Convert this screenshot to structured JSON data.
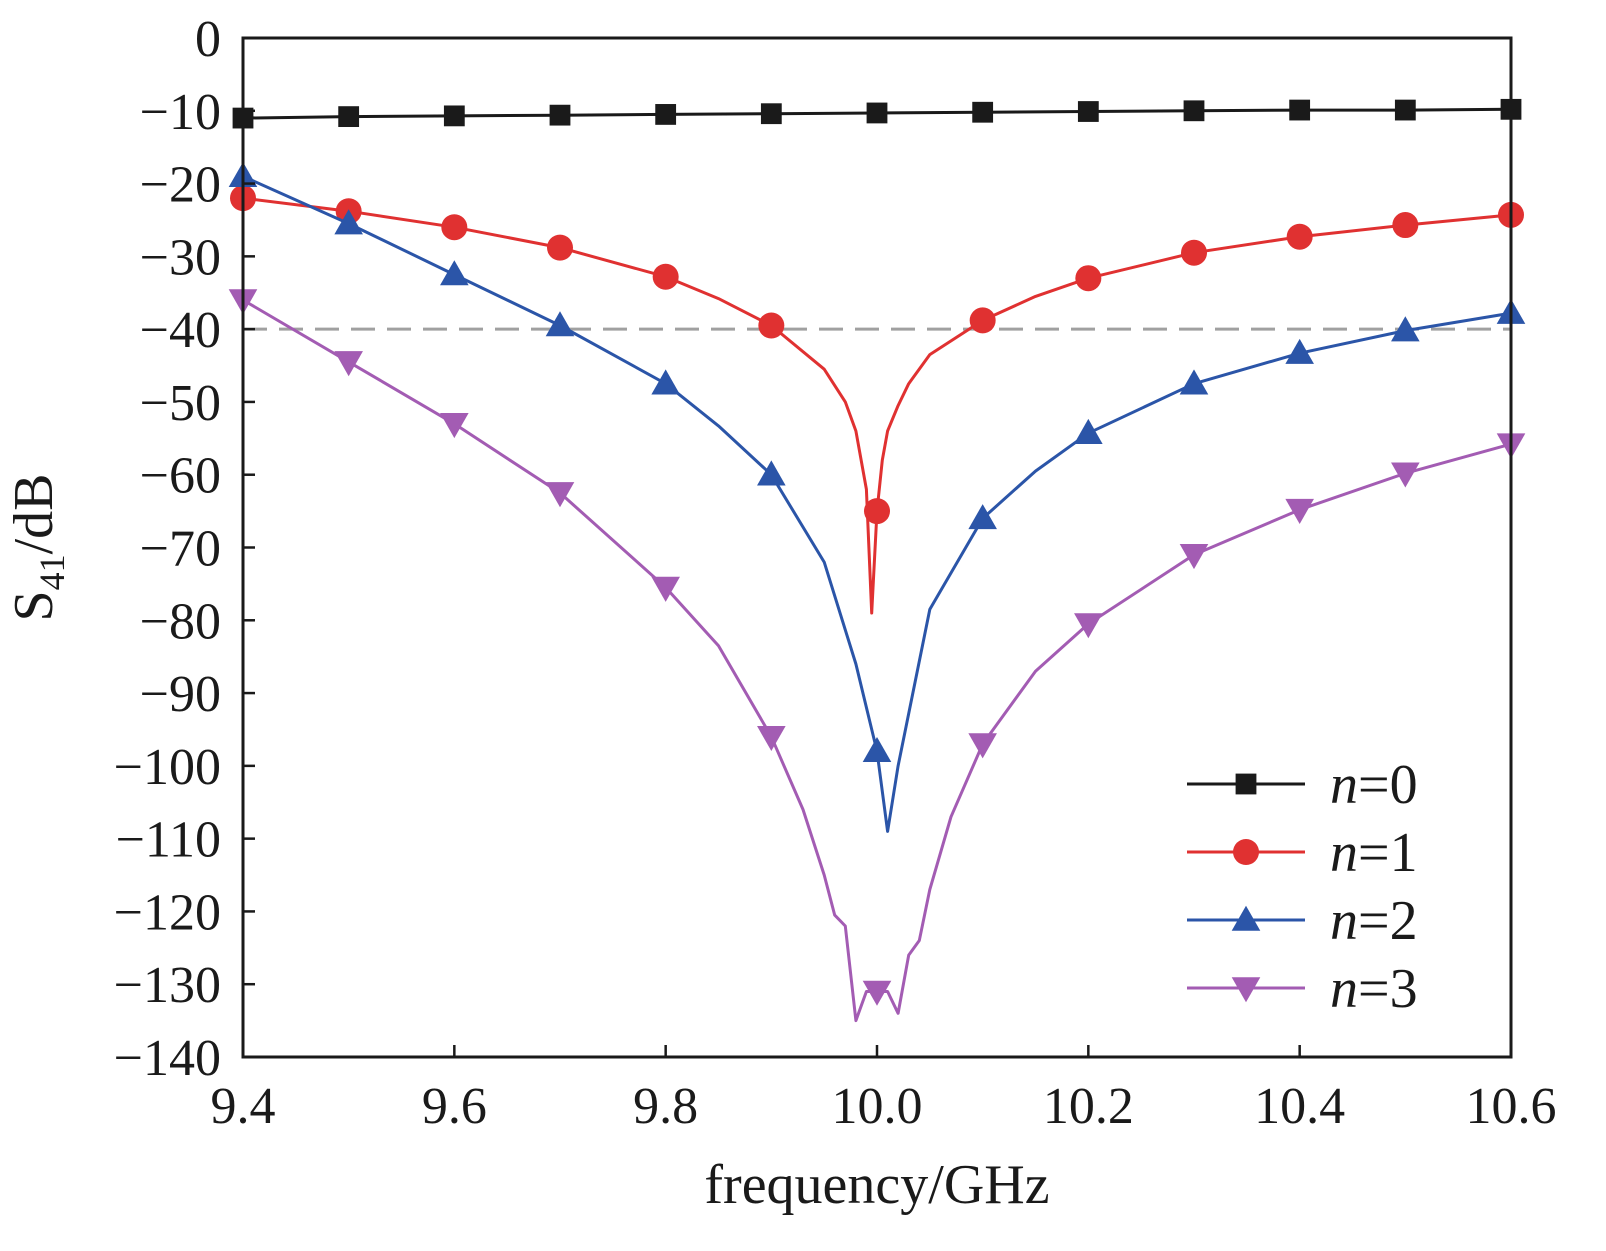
{
  "chart_data": {
    "type": "line",
    "xlabel": "frequency/GHz",
    "ylabel": {
      "main": "S",
      "sub": "41",
      "suffix": "/dB"
    },
    "xlim": [
      9.4,
      10.6
    ],
    "ylim": [
      -140,
      0
    ],
    "x_ticks": [
      9.4,
      9.6,
      9.8,
      10.0,
      10.2,
      10.4,
      10.6
    ],
    "x_tick_labels": [
      "9.4",
      "9.6",
      "9.8",
      "10.0",
      "10.2",
      "10.4",
      "10.6"
    ],
    "y_ticks": [
      0,
      -10,
      -20,
      -30,
      -40,
      -50,
      -60,
      -70,
      -80,
      -90,
      -100,
      -110,
      -120,
      -130,
      -140
    ],
    "y_tick_labels": [
      "0",
      "−10",
      "−20",
      "−30",
      "−40",
      "−50",
      "−60",
      "−70",
      "−80",
      "−90",
      "−100",
      "−110",
      "−120",
      "−130",
      "−140"
    ],
    "reference_line": {
      "y": -40,
      "color": "#a0a0a0",
      "style": "dashed"
    },
    "grid": false,
    "legend_position": "bottom-right",
    "series": [
      {
        "name": "n=0",
        "legend_var": "n",
        "legend_rest": "=0",
        "color": "#1a1a1a",
        "marker": "square",
        "x": [
          9.4,
          9.5,
          9.6,
          9.7,
          9.8,
          9.9,
          10.0,
          10.1,
          10.2,
          10.3,
          10.4,
          10.5,
          10.6
        ],
        "y": [
          -11,
          -10.8,
          -10.7,
          -10.6,
          -10.5,
          -10.4,
          -10.3,
          -10.2,
          -10.1,
          -10.0,
          -9.9,
          -9.9,
          -9.8
        ],
        "markers_x": [
          9.4,
          9.5,
          9.6,
          9.7,
          9.8,
          9.9,
          10.0,
          10.1,
          10.2,
          10.3,
          10.4,
          10.5,
          10.6
        ],
        "markers_y": [
          -11,
          -10.8,
          -10.7,
          -10.6,
          -10.5,
          -10.4,
          -10.3,
          -10.2,
          -10.1,
          -10.0,
          -9.9,
          -9.9,
          -9.8
        ]
      },
      {
        "name": "n=1",
        "legend_var": "n",
        "legend_rest": "=1",
        "color": "#e03131",
        "marker": "circle",
        "x": [
          9.4,
          9.5,
          9.6,
          9.7,
          9.8,
          9.85,
          9.9,
          9.95,
          9.97,
          9.98,
          9.99,
          9.995,
          10.0,
          10.005,
          10.01,
          10.02,
          10.03,
          10.05,
          10.1,
          10.15,
          10.2,
          10.3,
          10.4,
          10.5,
          10.6
        ],
        "y": [
          -22,
          -23.8,
          -26,
          -28.8,
          -32.8,
          -35.8,
          -39.5,
          -45.5,
          -50,
          -54,
          -62,
          -79,
          -65,
          -58,
          -54,
          -50.5,
          -47.5,
          -43.5,
          -38.8,
          -35.5,
          -33,
          -29.5,
          -27.3,
          -25.7,
          -24.3
        ],
        "markers_x": [
          9.4,
          9.5,
          9.6,
          9.7,
          9.8,
          9.9,
          10.0,
          10.1,
          10.2,
          10.3,
          10.4,
          10.5,
          10.6
        ],
        "markers_y": [
          -22,
          -23.8,
          -26,
          -28.8,
          -32.8,
          -39.5,
          -65,
          -38.8,
          -33,
          -29.5,
          -27.3,
          -25.7,
          -24.3
        ]
      },
      {
        "name": "n=2",
        "legend_var": "n",
        "legend_rest": "=2",
        "color": "#2b55a8",
        "marker": "triangle-up",
        "x": [
          9.4,
          9.5,
          9.6,
          9.7,
          9.8,
          9.85,
          9.9,
          9.95,
          9.98,
          10.0,
          10.01,
          10.02,
          10.05,
          10.1,
          10.15,
          10.2,
          10.3,
          10.4,
          10.5,
          10.6
        ],
        "y": [
          -19,
          -25.5,
          -32.5,
          -39.5,
          -47.5,
          -53.3,
          -60,
          -72,
          -86,
          -98,
          -109,
          -100,
          -78.5,
          -66,
          -59.5,
          -54.3,
          -47.5,
          -43.3,
          -40.2,
          -37.8
        ],
        "markers_x": [
          9.4,
          9.5,
          9.6,
          9.7,
          9.8,
          9.9,
          10.0,
          10.1,
          10.2,
          10.3,
          10.4,
          10.5,
          10.6
        ],
        "markers_y": [
          -19,
          -25.5,
          -32.5,
          -39.5,
          -47.5,
          -60,
          -98,
          -66,
          -54.3,
          -47.5,
          -43.3,
          -40.2,
          -37.8
        ]
      },
      {
        "name": "n=3",
        "legend_var": "n",
        "legend_rest": "=3",
        "color": "#a35cb3",
        "marker": "triangle-down",
        "x": [
          9.4,
          9.5,
          9.6,
          9.7,
          9.8,
          9.85,
          9.9,
          9.93,
          9.95,
          9.96,
          9.97,
          9.98,
          9.99,
          10.0,
          10.01,
          10.02,
          10.03,
          10.04,
          10.05,
          10.07,
          10.1,
          10.15,
          10.2,
          10.3,
          10.4,
          10.5,
          10.6
        ],
        "y": [
          -36,
          -44.5,
          -53,
          -62.5,
          -75.5,
          -83.5,
          -96,
          -106,
          -115,
          -120.5,
          -122,
          -135,
          -131,
          -131,
          -131,
          -134,
          -126,
          -124,
          -117,
          -107,
          -97,
          -87,
          -80.5,
          -71,
          -64.8,
          -59.8,
          -55.8
        ],
        "markers_x": [
          9.4,
          9.5,
          9.6,
          9.7,
          9.8,
          9.9,
          10.0,
          10.1,
          10.2,
          10.3,
          10.4,
          10.5,
          10.6
        ],
        "markers_y": [
          -36,
          -44.5,
          -53,
          -62.5,
          -75.5,
          -96,
          -131,
          -97,
          -80.5,
          -71,
          -64.8,
          -59.8,
          -55.8
        ]
      }
    ]
  }
}
